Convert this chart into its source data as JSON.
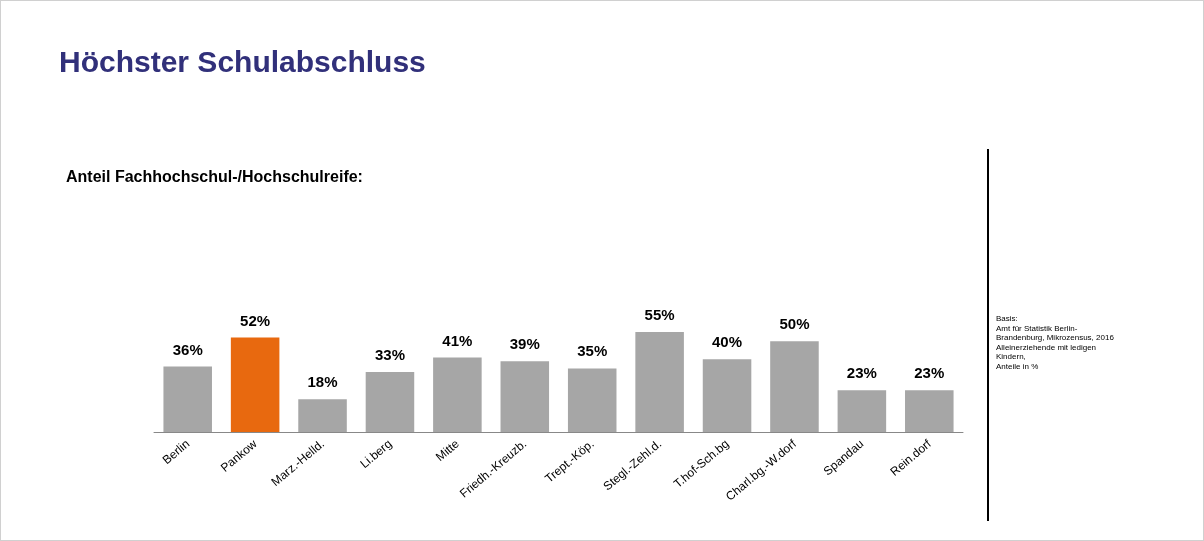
{
  "chart_data": {
    "type": "bar",
    "title": "Höchster Schulabschluss",
    "subtitle": "Anteil Fachhochschul-/Hochschulreife:",
    "categories": [
      "Berlin",
      "Pankow",
      "Marz.-Helld.",
      "Li.berg",
      "Mitte",
      "Friedh.-Kreuzb.",
      "Trept.-Köp.",
      "Stegl.-Zehl.d.",
      "T.hof-Sch.bg",
      "Charl.bg.-W.dorf",
      "Spandau",
      "Rein.dorf"
    ],
    "values": [
      36,
      52,
      18,
      33,
      41,
      39,
      35,
      55,
      40,
      50,
      23,
      23
    ],
    "value_labels": [
      "36%",
      "52%",
      "18%",
      "33%",
      "41%",
      "39%",
      "35%",
      "55%",
      "40%",
      "50%",
      "23%",
      "23%"
    ],
    "colors": [
      "#a6a6a6",
      "#e8690f",
      "#a6a6a6",
      "#a6a6a6",
      "#a6a6a6",
      "#a6a6a6",
      "#a6a6a6",
      "#a6a6a6",
      "#a6a6a6",
      "#a6a6a6",
      "#a6a6a6",
      "#a6a6a6"
    ],
    "annotations": [
      "Basis:\nAmt für Statistik Berlin-\nBrandenburg, Mikrozensus, 2016\nAlleinerziehende mit ledigen\nKindern,\nAnteile in %"
    ]
  }
}
